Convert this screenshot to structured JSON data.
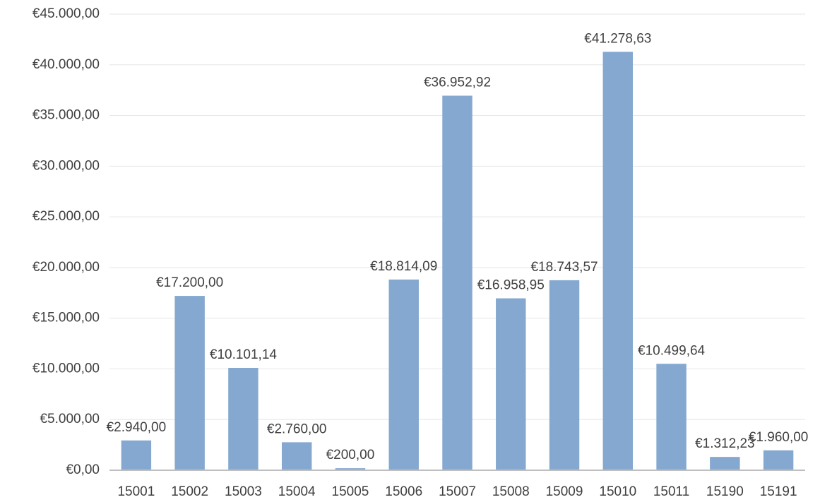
{
  "chart_data": {
    "type": "bar",
    "categories": [
      "15001",
      "15002",
      "15003",
      "15004",
      "15005",
      "15006",
      "15007",
      "15008",
      "15009",
      "15010",
      "15011",
      "15190",
      "15191"
    ],
    "values": [
      2940,
      17200,
      10101.14,
      2760,
      200,
      18814.09,
      36952.92,
      16958.95,
      18743.57,
      41278.63,
      10499.64,
      1312.23,
      1960
    ],
    "value_labels": [
      "€2.940,00",
      "€17.200,00",
      "€10.101,14",
      "€2.760,00",
      "€200,00",
      "€18.814,09",
      "€36.952,92",
      "€16.958,95",
      "€18.743,57",
      "€41.278,63",
      "€10.499,64",
      "€1.312,23",
      "€1.960,00"
    ],
    "color": "#84a8d0",
    "ylim": [
      0,
      45000
    ],
    "yticks": [
      {
        "value": 0,
        "label": "€0,00"
      },
      {
        "value": 5000,
        "label": "€5.000,00"
      },
      {
        "value": 10000,
        "label": "€10.000,00"
      },
      {
        "value": 15000,
        "label": "€15.000,00"
      },
      {
        "value": 20000,
        "label": "€20.000,00"
      },
      {
        "value": 25000,
        "label": "€25.000,00"
      },
      {
        "value": 30000,
        "label": "€30.000,00"
      },
      {
        "value": 35000,
        "label": "€35.000,00"
      },
      {
        "value": 40000,
        "label": "€40.000,00"
      },
      {
        "value": 45000,
        "label": "€45.000,00"
      }
    ],
    "grid": true
  }
}
